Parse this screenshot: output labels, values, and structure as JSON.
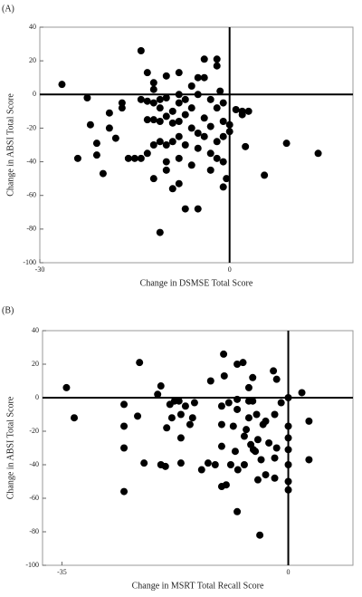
{
  "chart_data": [
    {
      "type": "scatter",
      "label": "(A)",
      "x_label": "Change in DSMSE Total Score",
      "y_label": "Change in ABSI Total Score",
      "color": "#000000",
      "zero_lines": true,
      "xlim": [
        -30,
        19.5
      ],
      "ylim": [
        -100,
        40
      ],
      "xticks": [
        -30,
        0
      ],
      "yticks": [
        -100,
        -80,
        -60,
        -40,
        -20,
        0,
        20,
        40
      ],
      "x": [
        -26.5,
        -22.5,
        -22,
        -21,
        -21,
        -20,
        -24,
        -19,
        -19,
        -18,
        -17,
        -17,
        -16,
        -15,
        -14,
        -14,
        -14,
        -13,
        -13,
        -13,
        -13,
        -12,
        -12,
        -12,
        -12,
        -12,
        -12,
        -11,
        -11,
        -11,
        -11,
        -10,
        -10,
        -10,
        -10,
        -10,
        -10,
        -11,
        -9,
        -9,
        -9,
        -9,
        -8,
        -8,
        -8,
        -8,
        -8,
        -8,
        -8,
        -7,
        -7,
        -7,
        -7,
        -6,
        -6,
        -6,
        -6,
        -5,
        -5,
        -5,
        -5,
        -5,
        -4,
        -4,
        -4,
        -4,
        -3,
        -3,
        -3,
        -2,
        -2,
        -2,
        -2,
        -2,
        -1,
        -1,
        0,
        0,
        -1.5,
        -1,
        -1,
        -0.5,
        1,
        2,
        2,
        2.5,
        3,
        5.5,
        9,
        14,
        -1,
        -3
      ],
      "y": [
        6,
        -2,
        -18,
        -29,
        -36,
        -47,
        -38,
        -11,
        -20,
        -26,
        -8,
        -5,
        -38,
        -38,
        26,
        -3,
        -38,
        13,
        -4,
        -15,
        -35,
        -5,
        3,
        7,
        -15,
        -50,
        -30,
        -3,
        -16,
        -28,
        -8,
        11,
        -2,
        -13,
        -30,
        -40,
        -45,
        -82,
        -10,
        -17,
        -28,
        -56,
        13,
        0,
        -5,
        -16,
        -25,
        -38,
        -53,
        -68,
        -3,
        -12,
        -30,
        -20,
        -8,
        -42,
        5,
        10,
        -23,
        -32,
        0,
        -68,
        21,
        10,
        -14,
        -25,
        -3,
        -19,
        -45,
        21,
        17,
        -8,
        -28,
        -38,
        -16,
        -55,
        -18,
        -22,
        2,
        -5,
        -25,
        -50,
        -9,
        -12,
        -10,
        -31,
        -10,
        -48,
        -29,
        -35,
        -40,
        -35
      ]
    },
    {
      "type": "scatter",
      "label": "(B)",
      "x_label": "Change in MSRT Total Recall Score",
      "y_label": "Change in ABSI Total Score",
      "color": "#000000",
      "zero_lines": true,
      "xlim": [
        -38,
        10
      ],
      "ylim": [
        -100,
        40
      ],
      "xticks": [
        -35,
        0
      ],
      "yticks": [
        -100,
        -80,
        -60,
        -40,
        -20,
        0,
        20,
        40
      ],
      "x": [
        -34.3,
        -33.1,
        -25.4,
        -25.4,
        -25.4,
        -25.4,
        -23,
        -23.3,
        -22.3,
        -20.2,
        -19.7,
        -19.7,
        -19,
        -18.8,
        -18.3,
        -18,
        -17.6,
        -16.9,
        -16.6,
        -16.6,
        -16.6,
        -15.9,
        -15.2,
        -14.8,
        -14.5,
        -13.4,
        -12.4,
        -12,
        -11.3,
        -10.3,
        -10.3,
        -10.3,
        -10.3,
        -10,
        -9.9,
        -9.6,
        -9.2,
        -8.9,
        -8.5,
        -8.2,
        -7.9,
        -7.9,
        -7.9,
        -7.9,
        -7.8,
        -7,
        -6.8,
        -6.8,
        -6.5,
        -6.1,
        -6.1,
        -6.1,
        -5.8,
        -5.5,
        -5.5,
        -5.4,
        -5.1,
        -4.9,
        -4.7,
        -4.7,
        -4.4,
        -4.2,
        -3.9,
        -3.5,
        -3.5,
        -3,
        -2.3,
        -2.1,
        -2.1,
        -2.1,
        -1.8,
        -1.8,
        -1.1,
        0,
        0,
        0,
        0,
        0,
        0,
        0,
        2.1,
        3.2,
        3.2
      ],
      "y": [
        6,
        -12,
        -4,
        -17,
        -30,
        -56,
        21,
        -11,
        -39,
        2,
        7,
        -40,
        -41,
        -18,
        -4,
        -12,
        -2,
        -2,
        -10,
        -24,
        -39,
        -5,
        -16,
        -12,
        -3,
        -43,
        -39,
        10,
        -40,
        -5,
        -16,
        -29,
        -53,
        26,
        13,
        -52,
        -3,
        -40,
        -17,
        -32,
        20,
        -1,
        -7,
        -68,
        -43,
        21,
        -23,
        -40,
        -19,
        6,
        -2,
        -12,
        -28,
        12,
        -2,
        -31,
        -32,
        -10,
        -25,
        -49,
        -82,
        -37,
        -16,
        -14,
        -46,
        -27,
        16,
        -48,
        -10,
        -36,
        11,
        -30,
        -3,
        0,
        -17,
        -24,
        -31,
        -40,
        -50,
        -55,
        3,
        -14,
        -37
      ]
    }
  ]
}
